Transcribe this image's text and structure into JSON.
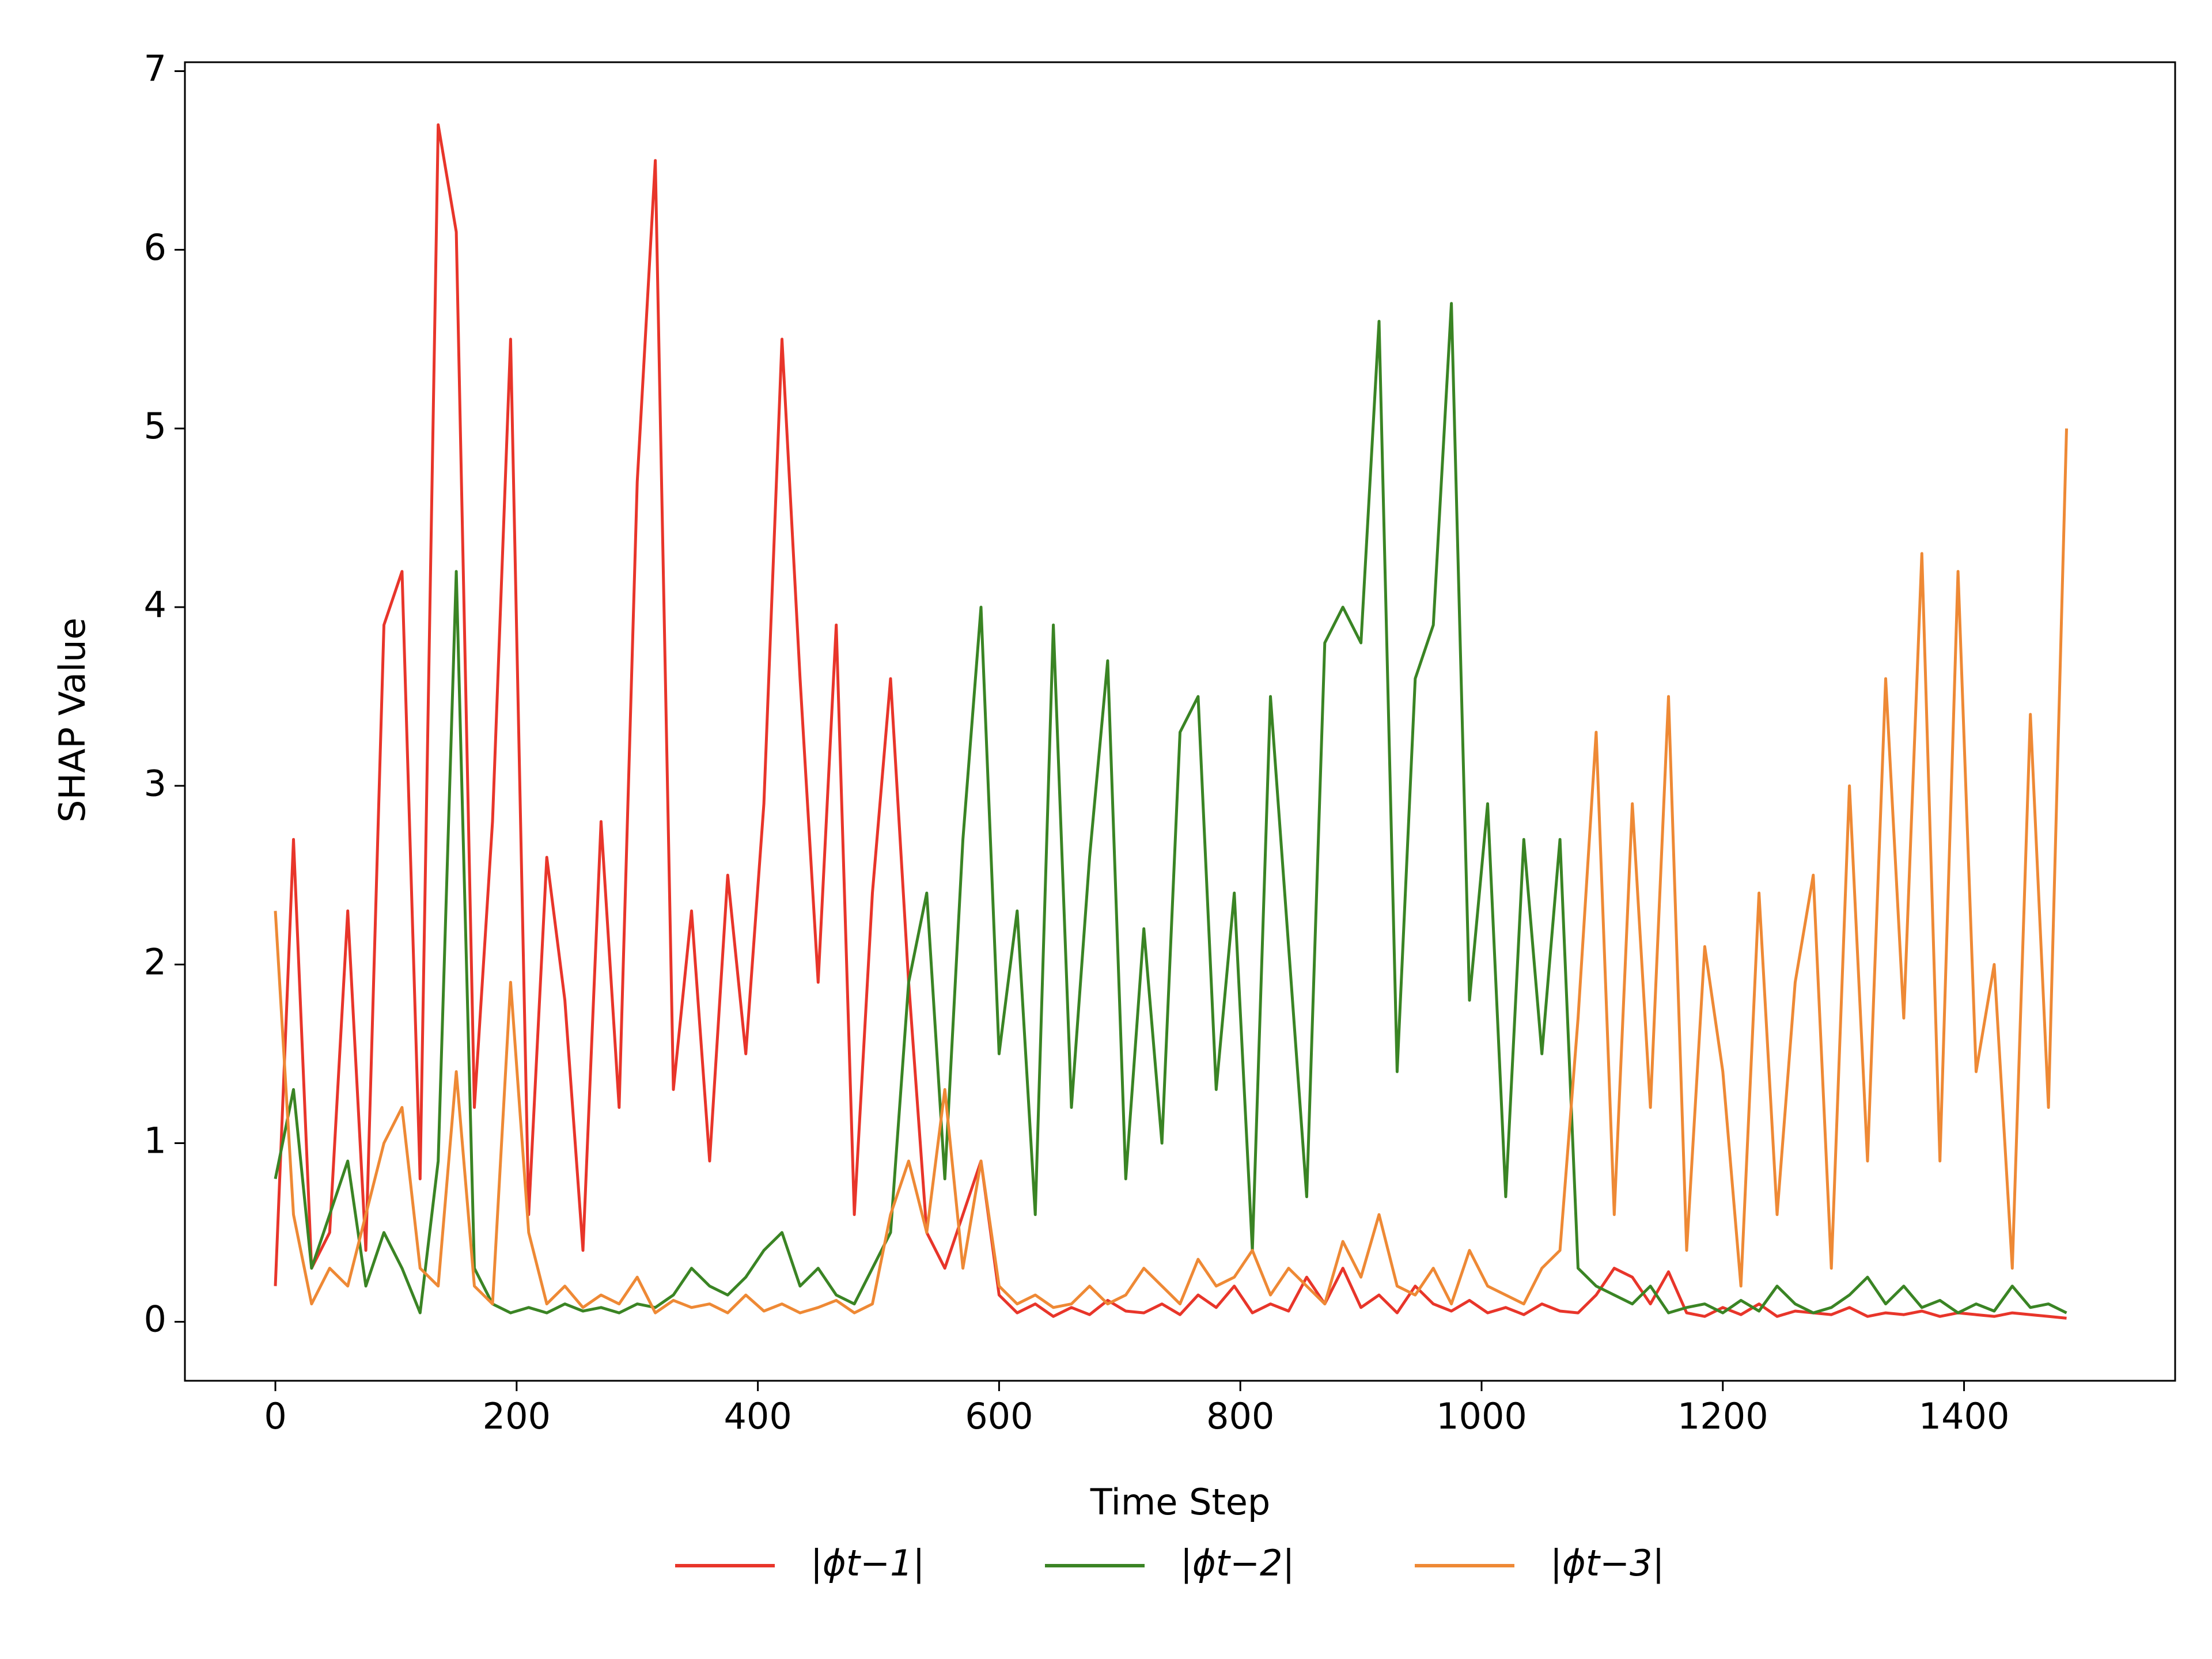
{
  "chart_data": {
    "type": "line",
    "xlabel": "Time Step",
    "ylabel": "SHAP Value",
    "x": [
      0,
      15,
      30,
      45,
      60,
      75,
      90,
      105,
      120,
      135,
      150,
      165,
      180,
      195,
      210,
      225,
      240,
      255,
      270,
      285,
      300,
      315,
      330,
      345,
      360,
      375,
      390,
      405,
      420,
      435,
      450,
      465,
      480,
      495,
      510,
      525,
      540,
      555,
      570,
      585,
      600,
      615,
      630,
      645,
      660,
      675,
      690,
      705,
      720,
      735,
      750,
      765,
      780,
      795,
      810,
      825,
      840,
      855,
      870,
      885,
      900,
      915,
      930,
      945,
      960,
      975,
      990,
      1005,
      1020,
      1035,
      1050,
      1065,
      1080,
      1095,
      1110,
      1125,
      1140,
      1155,
      1170,
      1185,
      1200,
      1215,
      1230,
      1245,
      1260,
      1275,
      1290,
      1305,
      1320,
      1335,
      1350,
      1365,
      1380,
      1395,
      1410,
      1425,
      1440,
      1455,
      1470,
      1485
    ],
    "series": [
      {
        "name": "|ϕt−1|",
        "color": "#e8352a",
        "values": [
          0.2,
          2.7,
          0.3,
          0.5,
          2.3,
          0.4,
          3.9,
          4.2,
          0.8,
          6.7,
          6.1,
          1.2,
          2.8,
          5.5,
          0.6,
          2.6,
          1.8,
          0.4,
          2.8,
          1.2,
          4.7,
          6.5,
          1.3,
          2.3,
          0.9,
          2.5,
          1.5,
          2.9,
          5.5,
          3.6,
          1.9,
          3.9,
          0.6,
          2.4,
          3.6,
          1.9,
          0.5,
          0.3,
          0.6,
          0.9,
          0.15,
          0.05,
          0.1,
          0.03,
          0.08,
          0.04,
          0.12,
          0.06,
          0.05,
          0.1,
          0.04,
          0.15,
          0.08,
          0.2,
          0.05,
          0.1,
          0.06,
          0.25,
          0.1,
          0.3,
          0.08,
          0.15,
          0.05,
          0.2,
          0.1,
          0.06,
          0.12,
          0.05,
          0.08,
          0.04,
          0.1,
          0.06,
          0.05,
          0.15,
          0.3,
          0.25,
          0.1,
          0.28,
          0.05,
          0.03,
          0.08,
          0.04,
          0.1,
          0.03,
          0.06,
          0.05,
          0.04,
          0.08,
          0.03,
          0.05,
          0.04,
          0.06,
          0.03,
          0.05,
          0.04,
          0.03,
          0.05,
          0.04,
          0.03,
          0.02
        ]
      },
      {
        "name": "|ϕt−2|",
        "color": "#3a8424",
        "values": [
          0.8,
          1.3,
          0.3,
          0.6,
          0.9,
          0.2,
          0.5,
          0.3,
          0.05,
          0.9,
          4.2,
          0.3,
          0.1,
          0.05,
          0.08,
          0.05,
          0.1,
          0.06,
          0.08,
          0.05,
          0.1,
          0.08,
          0.15,
          0.3,
          0.2,
          0.15,
          0.25,
          0.4,
          0.5,
          0.2,
          0.3,
          0.15,
          0.1,
          0.3,
          0.5,
          1.9,
          2.4,
          0.8,
          2.7,
          4.0,
          1.5,
          2.3,
          0.6,
          3.9,
          1.2,
          2.6,
          3.7,
          0.8,
          2.2,
          1.0,
          3.3,
          3.5,
          1.3,
          2.4,
          0.4,
          3.5,
          2.1,
          0.7,
          3.8,
          4.0,
          3.8,
          5.6,
          1.4,
          3.6,
          3.9,
          5.7,
          1.8,
          2.9,
          0.7,
          2.7,
          1.5,
          2.7,
          0.3,
          0.2,
          0.15,
          0.1,
          0.2,
          0.05,
          0.08,
          0.1,
          0.05,
          0.12,
          0.06,
          0.2,
          0.1,
          0.05,
          0.08,
          0.15,
          0.25,
          0.1,
          0.2,
          0.08,
          0.12,
          0.05,
          0.1,
          0.06,
          0.2,
          0.08,
          0.1,
          0.05
        ]
      },
      {
        "name": "|ϕt−3|",
        "color": "#ee8935",
        "values": [
          2.3,
          0.6,
          0.1,
          0.3,
          0.2,
          0.6,
          1.0,
          1.2,
          0.3,
          0.2,
          1.4,
          0.2,
          0.1,
          1.9,
          0.5,
          0.1,
          0.2,
          0.08,
          0.15,
          0.1,
          0.25,
          0.05,
          0.12,
          0.08,
          0.1,
          0.05,
          0.15,
          0.06,
          0.1,
          0.05,
          0.08,
          0.12,
          0.05,
          0.1,
          0.6,
          0.9,
          0.5,
          1.3,
          0.3,
          0.9,
          0.2,
          0.1,
          0.15,
          0.08,
          0.1,
          0.2,
          0.1,
          0.15,
          0.3,
          0.2,
          0.1,
          0.35,
          0.2,
          0.25,
          0.4,
          0.15,
          0.3,
          0.2,
          0.1,
          0.45,
          0.25,
          0.6,
          0.2,
          0.15,
          0.3,
          0.1,
          0.4,
          0.2,
          0.15,
          0.1,
          0.3,
          0.4,
          1.7,
          3.3,
          0.6,
          2.9,
          1.2,
          3.5,
          0.4,
          2.1,
          1.4,
          0.2,
          2.4,
          0.6,
          1.9,
          2.5,
          0.3,
          3.0,
          0.9,
          3.6,
          1.7,
          4.3,
          0.9,
          4.2,
          1.4,
          2.0,
          0.3,
          3.4,
          1.2,
          5.0
        ]
      }
    ],
    "xlim": [
      -75,
      1575
    ],
    "xticks": [
      0,
      200,
      400,
      600,
      800,
      1000,
      1200,
      1400
    ],
    "ylim": [
      -0.33,
      7.05
    ],
    "yticks": [
      0,
      1,
      2,
      3,
      4,
      5,
      6,
      7
    ],
    "legend": "bottom"
  }
}
